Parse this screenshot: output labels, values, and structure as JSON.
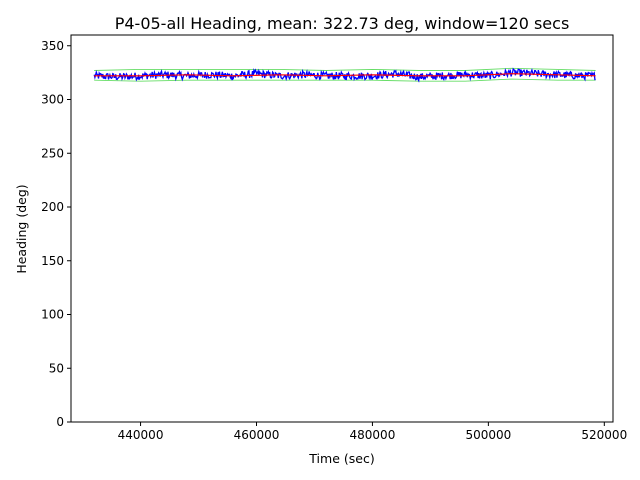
{
  "chart_data": {
    "type": "line",
    "title": "P4-05-all Heading, mean: 322.73 deg, window=120 secs",
    "xlabel": "Time (sec)",
    "ylabel": "Heading (deg)",
    "xlim": [
      428000,
      521500
    ],
    "ylim": [
      0,
      360
    ],
    "xticks": [
      440000,
      460000,
      480000,
      500000,
      520000
    ],
    "yticks": [
      0,
      50,
      100,
      150,
      200,
      250,
      300,
      350
    ],
    "grid": false,
    "legend": "none",
    "x_range": [
      432000,
      518500
    ],
    "series": [
      {
        "color": "#0000ff",
        "style": "noisy-line",
        "x": [
          432000,
          436000,
          440000,
          444000,
          448000,
          452000,
          456000,
          460000,
          464000,
          468000,
          472000,
          476000,
          480000,
          484000,
          488000,
          492000,
          496000,
          500000,
          504000,
          508000,
          512000,
          516000,
          518500
        ],
        "y": [
          322,
          321,
          322,
          323,
          322,
          323,
          322,
          324,
          322,
          323,
          322,
          322,
          322,
          324,
          321,
          322,
          323,
          322,
          325,
          324,
          323,
          322,
          322
        ],
        "spread": 3.5
      },
      {
        "color": "#ff0000",
        "style": "smooth-line",
        "x": [
          432000,
          440000,
          448000,
          456000,
          464000,
          472000,
          480000,
          488000,
          496000,
          504000,
          512000,
          518500
        ],
        "y": [
          322,
          322,
          323,
          322,
          323,
          322,
          323,
          322,
          322,
          324,
          323,
          322
        ]
      },
      {
        "color": "#66dd66",
        "style": "band-upper",
        "x": [
          432000,
          440000,
          448000,
          456000,
          464000,
          472000,
          480000,
          488000,
          496000,
          504000,
          512000,
          518500
        ],
        "y": [
          327,
          328,
          328,
          328,
          328,
          327,
          328,
          327,
          327,
          329,
          328,
          327
        ]
      },
      {
        "color": "#66dd66",
        "style": "band-lower",
        "x": [
          432000,
          440000,
          448000,
          456000,
          464000,
          472000,
          480000,
          488000,
          496000,
          504000,
          512000,
          518500
        ],
        "y": [
          318,
          317,
          318,
          318,
          318,
          318,
          318,
          317,
          317,
          319,
          318,
          318
        ]
      }
    ]
  }
}
